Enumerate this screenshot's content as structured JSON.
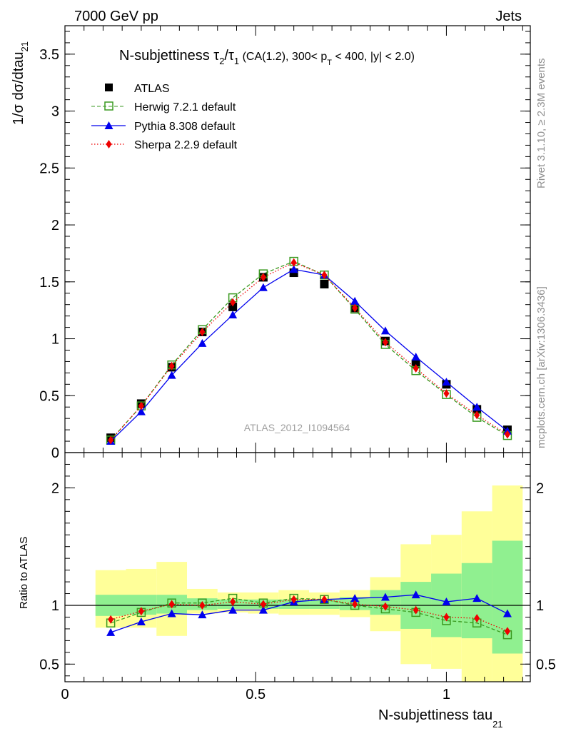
{
  "header": {
    "energy_label": "7000 GeV pp",
    "category_label": "Jets"
  },
  "side_labels": {
    "rivet": "Rivet 3.1.10, ≥ 2.3M events",
    "mcplots": "mcplots.cern.ch [arXiv:1306.3436]"
  },
  "plot_title": {
    "main": "N-subjettiness ",
    "tau2": "τ",
    "sub2": "2",
    "slash": "/",
    "tau1": "τ",
    "sub1": "1",
    "cuts_a": " (CA(1.2), 300< p",
    "sub_T": "T",
    "cuts_b": " < 400, |y| < 2.0)"
  },
  "watermark": "ATLAS_2012_I1094564",
  "ylabel_top": {
    "main": "1/σ dσ/dtau",
    "sub": "21"
  },
  "ylabel_bottom": "Ratio to ATLAS",
  "xlabel": {
    "main": "N-subjettiness tau",
    "sub": "21"
  },
  "colors": {
    "atlas": "#000000",
    "herwig": "#3a9a20",
    "pythia": "#0000ee",
    "sherpa": "#ee0000",
    "band_inner": "#90f090",
    "band_outer": "#ffff99"
  },
  "chart_data": [
    {
      "type": "line",
      "panel": "main",
      "x": [
        0.12,
        0.2,
        0.28,
        0.36,
        0.44,
        0.52,
        0.6,
        0.68,
        0.76,
        0.84,
        0.92,
        1.0,
        1.08,
        1.16
      ],
      "ylim": [
        0,
        3.75
      ],
      "xlim": [
        0,
        1.22
      ],
      "yticks": [
        "0",
        "0.5",
        "1",
        "1.5",
        "2",
        "2.5",
        "3",
        "3.5"
      ],
      "legend_position": "top-left",
      "series": [
        {
          "name": "ATLAS",
          "values": [
            0.13,
            0.43,
            0.75,
            1.06,
            1.28,
            1.54,
            1.58,
            1.48,
            1.27,
            0.98,
            0.78,
            0.6,
            0.38,
            0.2
          ]
        },
        {
          "name": "Herwig 7.2.1 default",
          "values": [
            0.11,
            0.41,
            0.77,
            1.08,
            1.36,
            1.57,
            1.68,
            1.56,
            1.26,
            0.95,
            0.72,
            0.51,
            0.31,
            0.15
          ]
        },
        {
          "name": "Pythia 8.308 default",
          "values": [
            0.1,
            0.36,
            0.68,
            0.96,
            1.21,
            1.45,
            1.61,
            1.56,
            1.33,
            1.07,
            0.84,
            0.62,
            0.4,
            0.19
          ]
        },
        {
          "name": "Sherpa 2.2.9 default",
          "values": [
            0.11,
            0.41,
            0.76,
            1.06,
            1.32,
            1.54,
            1.67,
            1.56,
            1.27,
            0.97,
            0.74,
            0.52,
            0.33,
            0.16
          ]
        }
      ]
    },
    {
      "type": "line",
      "panel": "ratio",
      "x": [
        0.12,
        0.2,
        0.28,
        0.36,
        0.44,
        0.52,
        0.6,
        0.68,
        0.76,
        0.84,
        0.92,
        1.0,
        1.08,
        1.16
      ],
      "ylim": [
        0.35,
        2.3
      ],
      "xlim": [
        0,
        1.22
      ],
      "yticks": [
        "0.5",
        "1",
        "2"
      ],
      "xticks": [
        "0",
        "0.5",
        "1"
      ],
      "bins": [
        [
          0.08,
          0.16
        ],
        [
          0.16,
          0.24
        ],
        [
          0.24,
          0.32
        ],
        [
          0.32,
          0.4
        ],
        [
          0.4,
          0.48
        ],
        [
          0.48,
          0.56
        ],
        [
          0.56,
          0.64
        ],
        [
          0.64,
          0.72
        ],
        [
          0.72,
          0.8
        ],
        [
          0.8,
          0.88
        ],
        [
          0.88,
          0.96
        ],
        [
          0.96,
          1.04
        ],
        [
          1.04,
          1.12
        ],
        [
          1.12,
          1.2
        ]
      ],
      "band_inner": [
        [
          0.91,
          1.09
        ],
        [
          0.92,
          1.09
        ],
        [
          0.93,
          1.09
        ],
        [
          0.96,
          1.06
        ],
        [
          0.97,
          1.05
        ],
        [
          0.97,
          1.05
        ],
        [
          0.97,
          1.05
        ],
        [
          0.97,
          1.05
        ],
        [
          0.96,
          1.07
        ],
        [
          0.92,
          1.13
        ],
        [
          0.8,
          1.2
        ],
        [
          0.73,
          1.27
        ],
        [
          0.72,
          1.36
        ],
        [
          0.59,
          1.55
        ]
      ],
      "band_outer": [
        [
          0.81,
          1.3
        ],
        [
          0.81,
          1.31
        ],
        [
          0.74,
          1.37
        ],
        [
          0.93,
          1.14
        ],
        [
          0.94,
          1.11
        ],
        [
          0.93,
          1.11
        ],
        [
          0.92,
          1.13
        ],
        [
          0.92,
          1.11
        ],
        [
          0.9,
          1.13
        ],
        [
          0.78,
          1.24
        ],
        [
          0.5,
          1.52
        ],
        [
          0.46,
          1.6
        ],
        [
          0.35,
          1.8
        ],
        [
          0.35,
          2.02
        ]
      ],
      "series": [
        {
          "name": "Herwig 7.2.1 default",
          "values": [
            0.85,
            0.94,
            1.02,
            1.02,
            1.06,
            1.02,
            1.06,
            1.05,
            1.0,
            0.97,
            0.94,
            0.87,
            0.85,
            0.75
          ]
        },
        {
          "name": "Pythia 8.308 default",
          "values": [
            0.77,
            0.86,
            0.93,
            0.92,
            0.96,
            0.96,
            1.03,
            1.05,
            1.06,
            1.07,
            1.09,
            1.03,
            1.06,
            0.93
          ]
        },
        {
          "name": "Sherpa 2.2.9 default",
          "values": [
            0.88,
            0.95,
            1.01,
            1.0,
            1.03,
            1.01,
            1.05,
            1.05,
            1.01,
            0.99,
            0.96,
            0.9,
            0.89,
            0.78
          ]
        }
      ]
    }
  ]
}
